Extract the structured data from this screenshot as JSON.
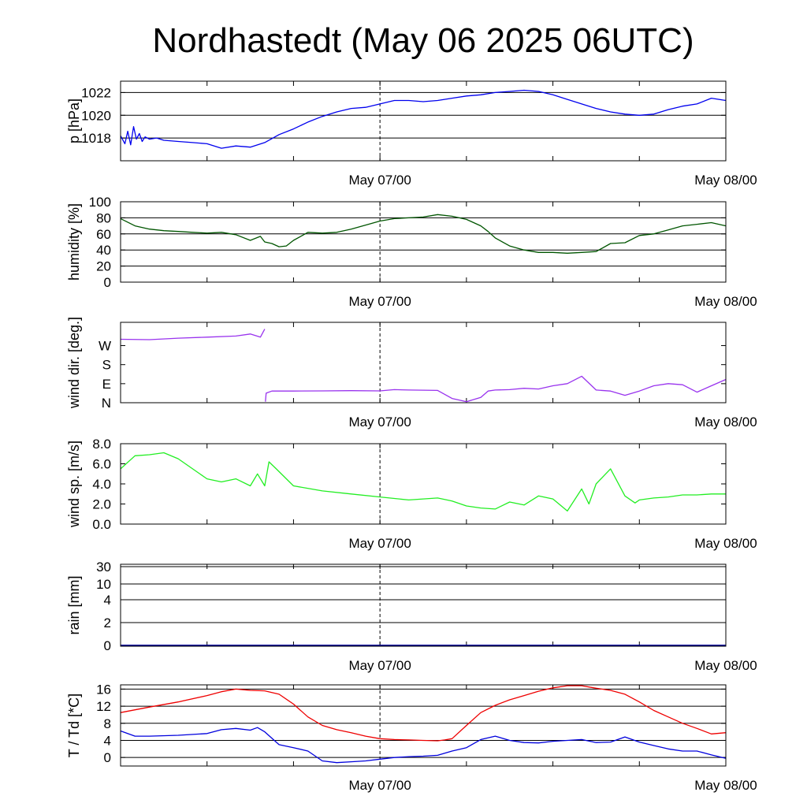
{
  "title": "Nordhastedt (May 06 2025 06UTC)",
  "chart_data": [
    {
      "type": "line",
      "ylabel": "p [hPa]",
      "xlim": [
        "May 06 06UTC",
        "May 08 00UTC"
      ],
      "ylim": [
        1016,
        1023
      ],
      "x_tick_labels": [
        "May 07/00",
        "May 08/00"
      ],
      "y_ticks": [
        1018,
        1020,
        1022
      ],
      "y_tick_labels": [
        "1018",
        "1020",
        "1022"
      ],
      "gridlines": [
        1018,
        1020,
        1022
      ],
      "color": "#0000ee",
      "x_hours": [
        0,
        0.3,
        0.5,
        0.7,
        0.9,
        1.1,
        1.3,
        1.5,
        1.7,
        2.0,
        2.5,
        3,
        4,
        5,
        6,
        7,
        8,
        9,
        10,
        11,
        12,
        13,
        14,
        15,
        16,
        17,
        18,
        19,
        20,
        21,
        22,
        23,
        24,
        25,
        26,
        27,
        28,
        29,
        30,
        31,
        32,
        33,
        34,
        35,
        36,
        37,
        38,
        39,
        40,
        41,
        42
      ],
      "values": [
        1018.2,
        1017.5,
        1018.6,
        1017.4,
        1019.0,
        1017.9,
        1018.4,
        1017.7,
        1018.1,
        1017.9,
        1018.0,
        1017.8,
        1017.7,
        1017.6,
        1017.5,
        1017.1,
        1017.3,
        1017.2,
        1017.6,
        1018.3,
        1018.8,
        1019.4,
        1019.9,
        1020.3,
        1020.6,
        1020.7,
        1021.0,
        1021.3,
        1021.3,
        1021.2,
        1021.3,
        1021.5,
        1021.7,
        1021.8,
        1022.0,
        1022.1,
        1022.2,
        1022.1,
        1021.8,
        1021.4,
        1021.0,
        1020.6,
        1020.3,
        1020.1,
        1020.0,
        1020.1,
        1020.5,
        1020.8,
        1021.0,
        1021.5,
        1021.3
      ]
    },
    {
      "type": "line",
      "ylabel": "humidity [%]",
      "xlim": [
        "May 06 06UTC",
        "May 08 00UTC"
      ],
      "ylim": [
        0,
        100
      ],
      "x_tick_labels": [
        "May 07/00",
        "May 08/00"
      ],
      "y_ticks": [
        0,
        20,
        40,
        60,
        80,
        100
      ],
      "y_tick_labels": [
        "0",
        "20",
        "40",
        "60",
        "80",
        "100"
      ],
      "gridlines": [
        20,
        40,
        60,
        80
      ],
      "color": "#005500",
      "x_hours": [
        0,
        1,
        2,
        3,
        4,
        5,
        6,
        7,
        8,
        9,
        9.7,
        10,
        10.5,
        11,
        11.5,
        12,
        12.5,
        13,
        14,
        15,
        16,
        17,
        18,
        19,
        20,
        21,
        22,
        23,
        24,
        25,
        25.5,
        26,
        27,
        28,
        29,
        30,
        31,
        32,
        33,
        34,
        35,
        36,
        37,
        38,
        39,
        40,
        41,
        42
      ],
      "values": [
        79,
        70,
        66,
        64,
        63,
        62,
        61,
        62,
        59,
        52,
        57,
        50,
        48,
        44,
        45,
        52,
        57,
        62,
        61,
        62,
        66,
        71,
        76,
        79,
        80,
        81,
        84,
        82,
        78,
        70,
        63,
        55,
        45,
        40,
        37,
        37,
        36,
        37,
        38,
        48,
        49,
        58,
        60,
        65,
        70,
        72,
        74,
        70
      ]
    },
    {
      "type": "line",
      "ylabel": "wind dir. [deg.]",
      "xlim": [
        "May 06 06UTC",
        "May 08 00UTC"
      ],
      "ylim": [
        0,
        380
      ],
      "x_tick_labels": [
        "May 07/00",
        "May 08/00"
      ],
      "y_ticks": [
        0,
        90,
        180,
        270
      ],
      "y_tick_labels": [
        "N",
        "E",
        "S",
        "W"
      ],
      "gridlines": [],
      "color": "#9933ee",
      "x_hours": [
        0,
        2,
        4,
        6,
        8,
        9,
        9.7,
        10,
        10.05,
        10.1,
        10.5,
        12,
        14,
        16,
        18,
        19,
        20,
        22,
        23,
        24,
        25,
        25.5,
        26,
        27,
        28,
        29,
        30,
        31,
        32,
        33,
        34,
        35,
        36,
        37,
        38,
        39,
        40,
        41,
        42
      ],
      "values": [
        300,
        298,
        305,
        310,
        315,
        325,
        310,
        348,
        5,
        45,
        55,
        55,
        56,
        57,
        56,
        62,
        60,
        58,
        20,
        5,
        25,
        55,
        60,
        62,
        68,
        65,
        80,
        90,
        125,
        60,
        55,
        35,
        55,
        80,
        90,
        85,
        50,
        80,
        110
      ]
    },
    {
      "type": "line",
      "ylabel": "wind sp. [m/s]",
      "xlim": [
        "May 06 06UTC",
        "May 08 00UTC"
      ],
      "ylim": [
        0,
        8
      ],
      "x_tick_labels": [
        "May 07/00",
        "May 08/00"
      ],
      "y_ticks": [
        0,
        2,
        4,
        6,
        8
      ],
      "y_tick_labels": [
        "0.0",
        "2.0",
        "4.0",
        "6.0",
        "8.0"
      ],
      "gridlines": [],
      "color": "#22ee22",
      "x_hours": [
        0,
        1,
        2,
        3,
        4,
        5,
        6,
        7,
        8,
        9,
        9.5,
        10,
        10.3,
        10.8,
        12,
        14,
        16,
        18,
        20,
        22,
        23,
        24,
        25,
        26,
        27,
        28,
        29,
        30,
        31,
        32,
        32.5,
        33,
        34,
        35,
        35.7,
        36,
        37,
        38,
        39,
        40,
        41,
        42
      ],
      "values": [
        5.5,
        6.8,
        6.9,
        7.1,
        6.5,
        5.5,
        4.5,
        4.2,
        4.5,
        3.8,
        5.0,
        3.8,
        6.2,
        5.5,
        3.8,
        3.3,
        3.0,
        2.7,
        2.4,
        2.6,
        2.3,
        1.8,
        1.6,
        1.5,
        2.2,
        1.9,
        2.8,
        2.5,
        1.3,
        3.5,
        2.0,
        4.0,
        5.5,
        2.8,
        2.1,
        2.4,
        2.6,
        2.7,
        2.9,
        2.9,
        3.0,
        3.0
      ]
    },
    {
      "type": "line",
      "ylabel": "rain [mm]",
      "xlim": [
        "May 06 06UTC",
        "May 08 00UTC"
      ],
      "x_tick_labels": [
        "May 07/00",
        "May 08/00"
      ],
      "y_tick_labels": [
        "0",
        "2",
        "4",
        "10",
        "30"
      ],
      "gridlines": [
        "2",
        "4",
        "10",
        "30"
      ],
      "color": "#000099",
      "x_hours": [
        0,
        42
      ],
      "values": [
        0,
        0
      ]
    },
    {
      "type": "line",
      "ylabel": "T / Td [*C]",
      "xlim": [
        "May 06 06UTC",
        "May 08 00UTC"
      ],
      "ylim": [
        -2,
        17
      ],
      "x_tick_labels": [
        "May 07/00",
        "May 08/00"
      ],
      "y_ticks": [
        0,
        4,
        8,
        12,
        16
      ],
      "y_tick_labels": [
        "0",
        "4",
        "8",
        "12",
        "16"
      ],
      "gridlines": [
        0,
        4,
        8,
        12,
        16
      ],
      "series": [
        {
          "color": "#ee0000",
          "x_hours": [
            0,
            2,
            4,
            6,
            7,
            8,
            9,
            10,
            11,
            12,
            13,
            14,
            15,
            16,
            17,
            18,
            19,
            20,
            21,
            22,
            22.5,
            23,
            24,
            25,
            26,
            27,
            28,
            29,
            30,
            31,
            32,
            33,
            34,
            35,
            36,
            37,
            38,
            39,
            40,
            41,
            42
          ],
          "values": [
            10.5,
            11.8,
            13,
            14.5,
            15.4,
            16,
            15.7,
            15.6,
            14.8,
            12.5,
            9.5,
            7.5,
            6.5,
            5.8,
            5,
            4.4,
            4.2,
            4.1,
            4.0,
            3.9,
            4.1,
            4.4,
            7.5,
            10.5,
            12.2,
            13.5,
            14.5,
            15.5,
            16.3,
            16.8,
            16.8,
            16.2,
            15.7,
            14.8,
            13,
            11,
            9.5,
            8,
            6.8,
            5.5,
            5.8
          ]
        },
        {
          "color": "#0000dd",
          "x_hours": [
            0,
            1,
            2,
            4,
            6,
            7,
            8,
            9,
            9.5,
            10,
            11,
            12,
            13,
            14,
            15,
            16,
            17,
            18,
            19,
            20,
            21,
            22,
            23,
            24,
            25,
            26,
            27,
            28,
            29,
            30,
            31,
            32,
            33,
            34,
            35,
            36,
            37,
            38,
            39,
            40,
            41,
            42
          ],
          "values": [
            6.2,
            5.0,
            5.0,
            5.2,
            5.6,
            6.5,
            6.8,
            6.4,
            7.0,
            6.0,
            3.0,
            2.3,
            1.5,
            -0.8,
            -1.2,
            -1.0,
            -0.8,
            -0.4,
            0.0,
            0.2,
            0.3,
            0.5,
            1.5,
            2.3,
            4.2,
            5.0,
            4.0,
            3.5,
            3.4,
            3.8,
            4.0,
            4.2,
            3.5,
            3.6,
            4.8,
            3.6,
            2.8,
            2.0,
            1.5,
            1.5,
            0.6,
            -0.2
          ]
        }
      ]
    }
  ]
}
